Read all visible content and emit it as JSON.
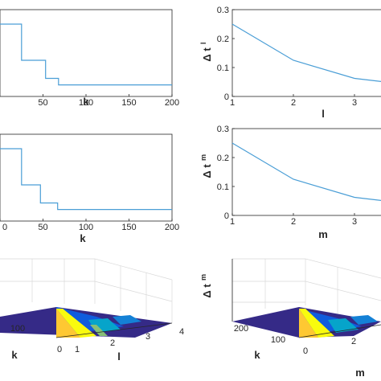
{
  "chart_data": [
    {
      "type": "line",
      "panel": "top-left",
      "xlabel": "k",
      "ylabel": "",
      "xlim": [
        0,
        200
      ],
      "xticks": [
        "50",
        "100",
        "150",
        "200"
      ],
      "x": [
        0,
        25,
        25,
        53,
        53,
        68,
        68,
        200
      ],
      "y": [
        0.25,
        0.25,
        0.125,
        0.125,
        0.0625,
        0.0625,
        0.04,
        0.04
      ],
      "ylim": [
        0,
        0.3
      ],
      "grid": false,
      "color": "#4a9ed6"
    },
    {
      "type": "line",
      "panel": "top-right",
      "xlabel": "l",
      "ylabel": "Δ t",
      "ylabel_sup": "l",
      "xlim": [
        1,
        3.5
      ],
      "ylim": [
        0,
        0.3
      ],
      "xticks": [
        "1",
        "2",
        "3"
      ],
      "yticks": [
        "0",
        "0.1",
        "0.2",
        "0.3"
      ],
      "x": [
        1,
        2,
        3,
        3.5
      ],
      "y": [
        0.25,
        0.125,
        0.0625,
        0.05
      ],
      "grid": false,
      "color": "#4a9ed6"
    },
    {
      "type": "line",
      "panel": "middle-left",
      "xlabel": "k",
      "ylabel": "",
      "xlim": [
        0,
        200
      ],
      "xticks": [
        "0",
        "50",
        "100",
        "150",
        "200"
      ],
      "x": [
        0,
        25,
        25,
        47,
        47,
        67,
        67,
        200
      ],
      "y": [
        0.25,
        0.25,
        0.125,
        0.125,
        0.0625,
        0.0625,
        0.04,
        0.04
      ],
      "ylim": [
        0,
        0.3
      ],
      "grid": false,
      "color": "#4a9ed6"
    },
    {
      "type": "line",
      "panel": "middle-right",
      "xlabel": "m",
      "ylabel": "Δ t",
      "ylabel_sup": "m",
      "xlim": [
        1,
        3.5
      ],
      "ylim": [
        0,
        0.3
      ],
      "xticks": [
        "1",
        "2",
        "3"
      ],
      "yticks": [
        "0",
        "0.1",
        "0.2",
        "0.3"
      ],
      "x": [
        1,
        2,
        3,
        3.5
      ],
      "y": [
        0.25,
        0.125,
        0.0625,
        0.05
      ],
      "grid": false,
      "color": "#4a9ed6"
    },
    {
      "type": "surface",
      "panel": "bottom-left",
      "xlabel": "k",
      "ylabel": "l",
      "xticks": [
        "100",
        "0"
      ],
      "yticks": [
        "1",
        "2",
        "3",
        "4"
      ],
      "colormap": [
        "#352a87",
        "#0f5cdd",
        "#1481d6",
        "#06a4ca",
        "#2eb7a4",
        "#87bf77",
        "#d1bb59",
        "#fec832",
        "#f9fb0e"
      ]
    },
    {
      "type": "surface",
      "panel": "bottom-right",
      "xlabel": "k",
      "ylabel": "m",
      "zlabel": "Δ t",
      "zlabel_sup": "m",
      "xticks": [
        "200",
        "100",
        "0"
      ],
      "yticks": [
        "2"
      ],
      "colormap": [
        "#352a87",
        "#0f5cdd",
        "#1481d6",
        "#06a4ca",
        "#2eb7a4",
        "#87bf77",
        "#d1bb59",
        "#fec832",
        "#f9fb0e"
      ]
    }
  ]
}
